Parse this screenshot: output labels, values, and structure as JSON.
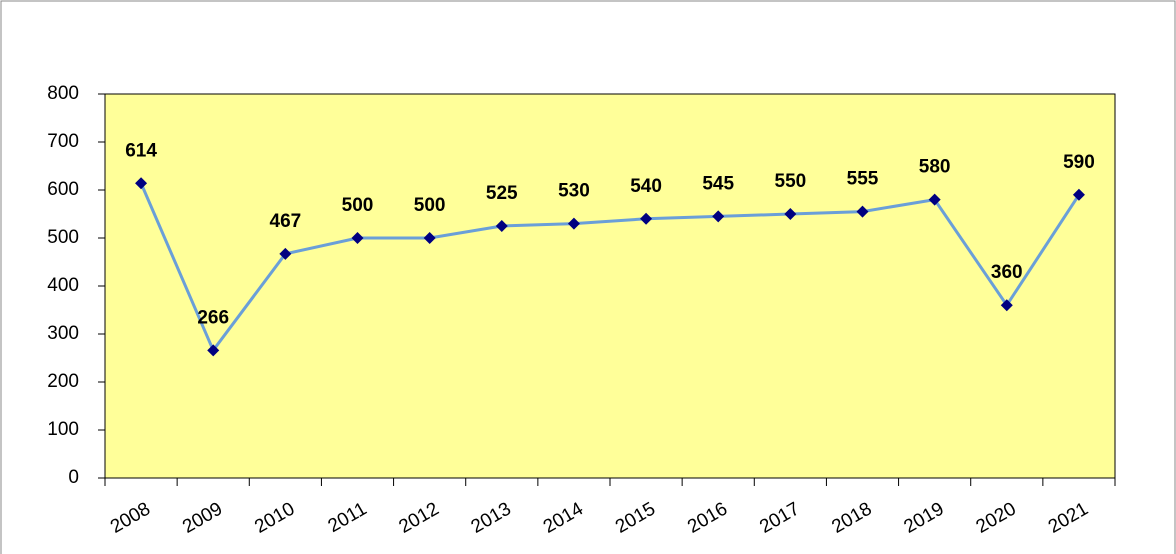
{
  "chart_data": {
    "type": "line",
    "categories": [
      "2008",
      "2009",
      "2010",
      "2011",
      "2012",
      "2013",
      "2014",
      "2015",
      "2016",
      "2017",
      "2018",
      "2019",
      "2020",
      "2021"
    ],
    "values": [
      614,
      266,
      467,
      500,
      500,
      525,
      530,
      540,
      545,
      550,
      555,
      580,
      360,
      590
    ],
    "color": "#6a9fd8",
    "marker_color": "#000080",
    "plot_background": "#ffff99",
    "ylim": [
      0,
      800
    ],
    "yticks": [
      0,
      100,
      200,
      300,
      400,
      500,
      600,
      700,
      800
    ],
    "grid": false
  }
}
